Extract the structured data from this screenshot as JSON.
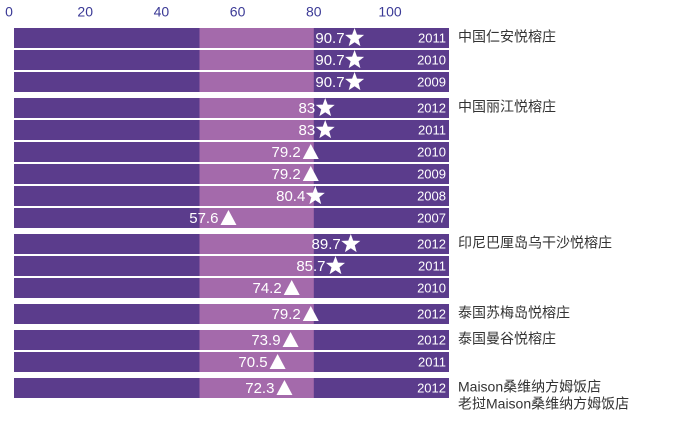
{
  "chart_data": {
    "type": "dot-rows",
    "xlim": [
      0,
      100
    ],
    "xticks": [
      0,
      20,
      40,
      60,
      80,
      100
    ],
    "highlight_range": [
      50,
      80
    ],
    "row_color": "#5b3c8c",
    "highlight_color": "#a46aab",
    "axis_color": "#3b3a96",
    "groups": [
      {
        "name": [
          "中国仁安悦榕庄"
        ],
        "rows": [
          {
            "year": "2011",
            "value": 90.7,
            "marker": "star"
          },
          {
            "year": "2010",
            "value": 90.7,
            "marker": "star"
          },
          {
            "year": "2009",
            "value": 90.7,
            "marker": "star"
          }
        ]
      },
      {
        "name": [
          "中国丽江悦榕庄"
        ],
        "rows": [
          {
            "year": "2012",
            "value": 83,
            "marker": "star"
          },
          {
            "year": "2011",
            "value": 83,
            "marker": "star"
          },
          {
            "year": "2010",
            "value": 79.2,
            "marker": "triangle"
          },
          {
            "year": "2009",
            "value": 79.2,
            "marker": "triangle"
          },
          {
            "year": "2008",
            "value": 80.4,
            "marker": "star"
          },
          {
            "year": "2007",
            "value": 57.6,
            "marker": "triangle"
          }
        ]
      },
      {
        "name": [
          "印尼巴厘岛乌干沙悦榕庄"
        ],
        "rows": [
          {
            "year": "2012",
            "value": 89.7,
            "marker": "star"
          },
          {
            "year": "2011",
            "value": 85.7,
            "marker": "star"
          },
          {
            "year": "2010",
            "value": 74.2,
            "marker": "triangle"
          }
        ]
      },
      {
        "name": [
          "泰国苏梅岛悦榕庄"
        ],
        "rows": [
          {
            "year": "2012",
            "value": 79.2,
            "marker": "triangle"
          }
        ]
      },
      {
        "name": [
          "泰国曼谷悦榕庄"
        ],
        "rows": [
          {
            "year": "2012",
            "value": 73.9,
            "marker": "triangle"
          },
          {
            "year": "2011",
            "value": 70.5,
            "marker": "triangle"
          }
        ]
      },
      {
        "name": [
          "Maison桑维纳方姆饭店",
          "老挝Maison桑维纳方姆饭店"
        ],
        "rows": [
          {
            "year": "2012",
            "value": 72.3,
            "marker": "triangle"
          }
        ]
      }
    ]
  }
}
